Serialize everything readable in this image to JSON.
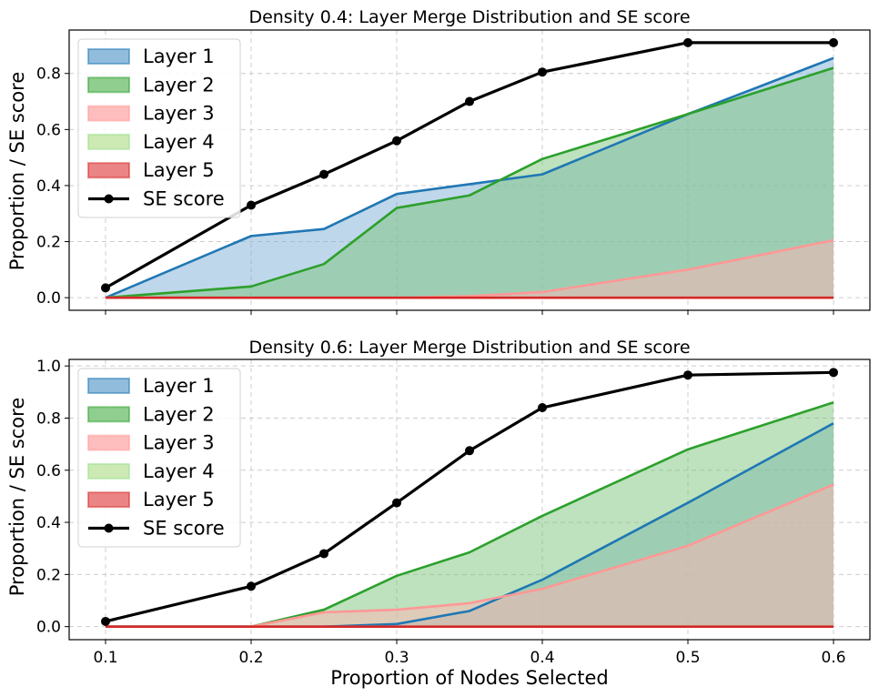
{
  "chart_data": [
    {
      "type": "area",
      "title": "Density 0.4: Layer Merge Distribution and SE score",
      "ylabel": "Proportion / SE score",
      "xlabel": "",
      "x": [
        0.1,
        0.2,
        0.25,
        0.3,
        0.35,
        0.4,
        0.5,
        0.6
      ],
      "xticks": [
        "0.1",
        "0.2",
        "0.3",
        "0.4",
        "0.5",
        "0.6"
      ],
      "yticks": [
        "0.0",
        "0.2",
        "0.4",
        "0.6",
        "0.8"
      ],
      "xlim": [
        0.075,
        0.625
      ],
      "ylim": [
        -0.045,
        0.955
      ],
      "grid": true,
      "legend": "upper left",
      "series": [
        {
          "name": "Layer 1",
          "kind": "area",
          "fill": "#7fb0d6",
          "line": "#1f77b4",
          "values": [
            0.0,
            0.22,
            0.245,
            0.37,
            0.405,
            0.44,
            0.655,
            0.855
          ]
        },
        {
          "name": "Layer 2",
          "kind": "area",
          "fill": "#7cc57c",
          "line": "#2ca02c",
          "values": [
            0.0,
            0.04,
            0.12,
            0.32,
            0.365,
            0.495,
            0.655,
            0.82
          ]
        },
        {
          "name": "Layer 3",
          "kind": "area",
          "fill": "#ffb3b3",
          "line": "#ff9896",
          "values": [
            0.0,
            0.0,
            0.0,
            0.0,
            0.005,
            0.02,
            0.1,
            0.205
          ]
        },
        {
          "name": "Layer 4",
          "kind": "area",
          "fill": "#c4e6a8",
          "line": "#98df8a",
          "values": [
            0.0,
            0.0,
            0.0,
            0.0,
            0.0,
            0.0,
            0.0,
            0.0
          ]
        },
        {
          "name": "Layer 5",
          "kind": "area",
          "fill": "#e87070",
          "line": "#d62728",
          "values": [
            0.0,
            0.0,
            0.0,
            0.0,
            0.0,
            0.0,
            0.0,
            0.0
          ]
        },
        {
          "name": "SE score",
          "kind": "line",
          "line": "#000000",
          "values": [
            0.035,
            0.33,
            0.44,
            0.56,
            0.7,
            0.805,
            0.91,
            0.91
          ]
        }
      ]
    },
    {
      "type": "area",
      "title": "Density 0.6: Layer Merge Distribution and SE score",
      "ylabel": "Proportion / SE score",
      "xlabel": "Proportion of Nodes Selected",
      "x": [
        0.1,
        0.2,
        0.25,
        0.3,
        0.35,
        0.4,
        0.5,
        0.6
      ],
      "xticks": [
        "0.1",
        "0.2",
        "0.3",
        "0.4",
        "0.5",
        "0.6"
      ],
      "yticks": [
        "0.0",
        "0.2",
        "0.4",
        "0.6",
        "0.8",
        "1.0"
      ],
      "xlim": [
        0.075,
        0.625
      ],
      "ylim": [
        -0.05,
        1.025
      ],
      "grid": true,
      "legend": "upper left",
      "series": [
        {
          "name": "Layer 1",
          "kind": "area",
          "fill": "#7fb0d6",
          "line": "#1f77b4",
          "values": [
            0.0,
            0.0,
            0.0,
            0.01,
            0.06,
            0.18,
            0.475,
            0.78
          ]
        },
        {
          "name": "Layer 2",
          "kind": "area",
          "fill": "#7cc57c",
          "line": "#2ca02c",
          "values": [
            0.0,
            0.0,
            0.065,
            0.195,
            0.285,
            0.425,
            0.68,
            0.86
          ]
        },
        {
          "name": "Layer 3",
          "kind": "area",
          "fill": "#ffb3b3",
          "line": "#ff9896",
          "values": [
            0.0,
            0.0,
            0.055,
            0.065,
            0.09,
            0.145,
            0.31,
            0.545
          ]
        },
        {
          "name": "Layer 4",
          "kind": "area",
          "fill": "#c4e6a8",
          "line": "#98df8a",
          "values": [
            0.0,
            0.0,
            0.0,
            0.0,
            0.0,
            0.0,
            0.0,
            0.0
          ]
        },
        {
          "name": "Layer 5",
          "kind": "area",
          "fill": "#e87070",
          "line": "#d62728",
          "values": [
            0.0,
            0.0,
            0.0,
            0.0,
            0.0,
            0.0,
            0.0,
            0.0
          ]
        },
        {
          "name": "SE score",
          "kind": "line",
          "line": "#000000",
          "values": [
            0.02,
            0.155,
            0.28,
            0.475,
            0.675,
            0.84,
            0.965,
            0.975
          ]
        }
      ]
    }
  ]
}
